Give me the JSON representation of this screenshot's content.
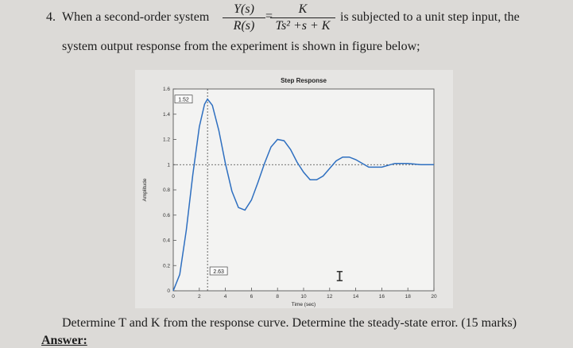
{
  "question": {
    "number": "4.",
    "intro": "When a second-order system",
    "tf_lhs_num": "Y(s)",
    "tf_lhs_den": "R(s)",
    "equals": "=",
    "tf_rhs_num": "K",
    "tf_rhs_den": "Ts² +s + K",
    "after": "is subjected to a unit step input, the",
    "line2": "system output response from the experiment is shown in figure below;",
    "task": "Determine T and K from the response curve. Determine the steady-state error. (15 marks)",
    "answer_label": "Answer:"
  },
  "chart_data": {
    "type": "line",
    "title": "Step Response",
    "xlabel": "Time (sec)",
    "ylabel": "Amplitude",
    "xlim": [
      0,
      20
    ],
    "ylim": [
      0,
      1.6
    ],
    "xticks": [
      0,
      2,
      4,
      6,
      8,
      10,
      12,
      14,
      16,
      18,
      20
    ],
    "yticks": [
      0,
      0.2,
      0.4,
      0.6,
      0.8,
      1.0,
      1.2,
      1.4,
      1.6
    ],
    "xtick_labels": [
      "0",
      "2",
      "4",
      "6",
      "8",
      "10",
      "12",
      "14",
      "16",
      "18",
      "20"
    ],
    "ytick_labels": [
      "0",
      "0.2",
      "0.4",
      "0.6",
      "0.8",
      "1",
      "1.2",
      "1.4",
      "1.6"
    ],
    "annotations": [
      {
        "text": "1.52",
        "x": 2.63,
        "y": 1.52
      },
      {
        "text": "2.63",
        "x": 2.63,
        "y": 0.0
      }
    ],
    "reference_lines": [
      {
        "orientation": "horizontal",
        "value": 1.0
      },
      {
        "orientation": "vertical",
        "value": 2.63
      }
    ],
    "series": [
      {
        "color": "#2e6fc0",
        "x": [
          0,
          0.5,
          1.0,
          1.5,
          2.0,
          2.4,
          2.63,
          3.0,
          3.5,
          4.0,
          4.5,
          5.0,
          5.5,
          6.0,
          6.5,
          7.0,
          7.5,
          8.0,
          8.5,
          9.0,
          9.5,
          10.0,
          10.5,
          11.0,
          11.5,
          12.0,
          12.5,
          13.0,
          13.5,
          14.0,
          15.0,
          16.0,
          17.0,
          18.0,
          19.0,
          20.0
        ],
        "y": [
          0,
          0.13,
          0.48,
          0.92,
          1.3,
          1.48,
          1.52,
          1.47,
          1.27,
          1.01,
          0.79,
          0.66,
          0.64,
          0.72,
          0.86,
          1.01,
          1.14,
          1.2,
          1.19,
          1.12,
          1.02,
          0.94,
          0.88,
          0.88,
          0.91,
          0.97,
          1.03,
          1.06,
          1.06,
          1.04,
          0.98,
          0.98,
          1.01,
          1.01,
          1.0,
          1.0
        ]
      }
    ]
  }
}
